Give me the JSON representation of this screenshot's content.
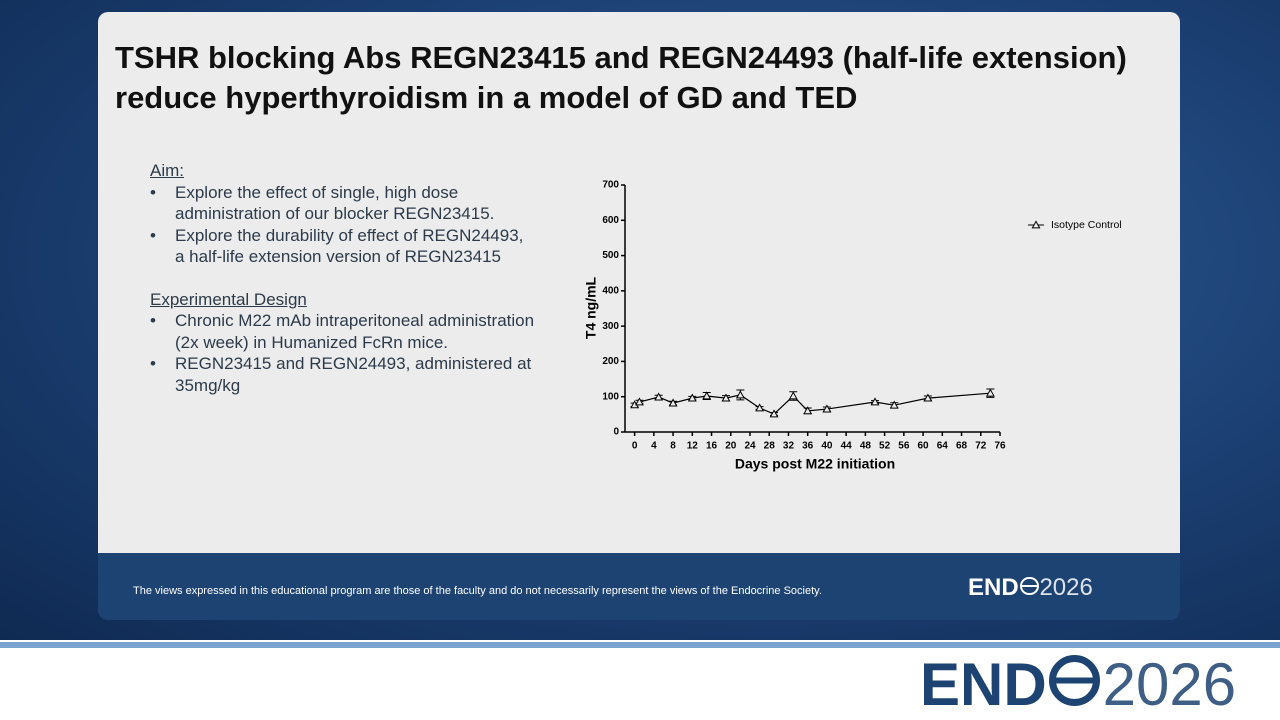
{
  "slide": {
    "title_lines": [
      "TSHR blocking Abs REGN23415 and REGN24493 (half-life extension)",
      "reduce hyperthyroidism in a model of GD and TED"
    ],
    "sections": [
      {
        "heading": "Aim:",
        "bullets": [
          [
            "Explore the effect of single, high dose",
            "administration of our blocker REGN23415."
          ],
          [
            "Explore the durability of effect of REGN24493,",
            "a half-life extension version of REGN23415"
          ]
        ]
      },
      {
        "heading": "Experimental Design",
        "bullets": [
          [
            "Chronic M22 mAb intraperitoneal administration",
            "(2x week) in Humanized FcRn mice."
          ],
          [
            "REGN23415 and REGN24493, administered at",
            "35mg/kg"
          ]
        ]
      }
    ],
    "bullet_symbol": "•",
    "footer": "The views expressed in this educational program are those of the faculty and do not necessarily represent the views of the Endocrine Society.",
    "logo": {
      "bold": "END",
      "light": "2026"
    }
  },
  "chart_data": {
    "type": "line",
    "x_label": "Days post M22 initiation",
    "y_label": "T4 ng/mL",
    "x": [
      0,
      1,
      5,
      8,
      12,
      15,
      19,
      22,
      26,
      29,
      33,
      36,
      40,
      50,
      54,
      61,
      74
    ],
    "series": [
      {
        "name": "Isotype Control",
        "color": "#000000",
        "values": [
          77,
          85,
          99,
          82,
          96,
          102,
          96,
          105,
          68,
          51,
          102,
          60,
          65,
          85,
          76,
          96,
          110
        ],
        "errors": [
          5,
          5,
          5,
          5,
          5,
          10,
          7,
          14,
          4,
          4,
          12,
          8,
          6,
          4,
          7,
          6,
          12
        ]
      }
    ],
    "xlim": [
      -2,
      76
    ],
    "xticks": [
      0,
      4,
      8,
      12,
      16,
      20,
      24,
      28,
      32,
      36,
      40,
      44,
      48,
      52,
      56,
      60,
      64,
      68,
      72,
      76
    ],
    "ylim": [
      0,
      700
    ],
    "yticks": [
      0,
      100,
      200,
      300,
      400,
      500,
      600,
      700
    ],
    "legend": "upper right",
    "grid": false
  }
}
